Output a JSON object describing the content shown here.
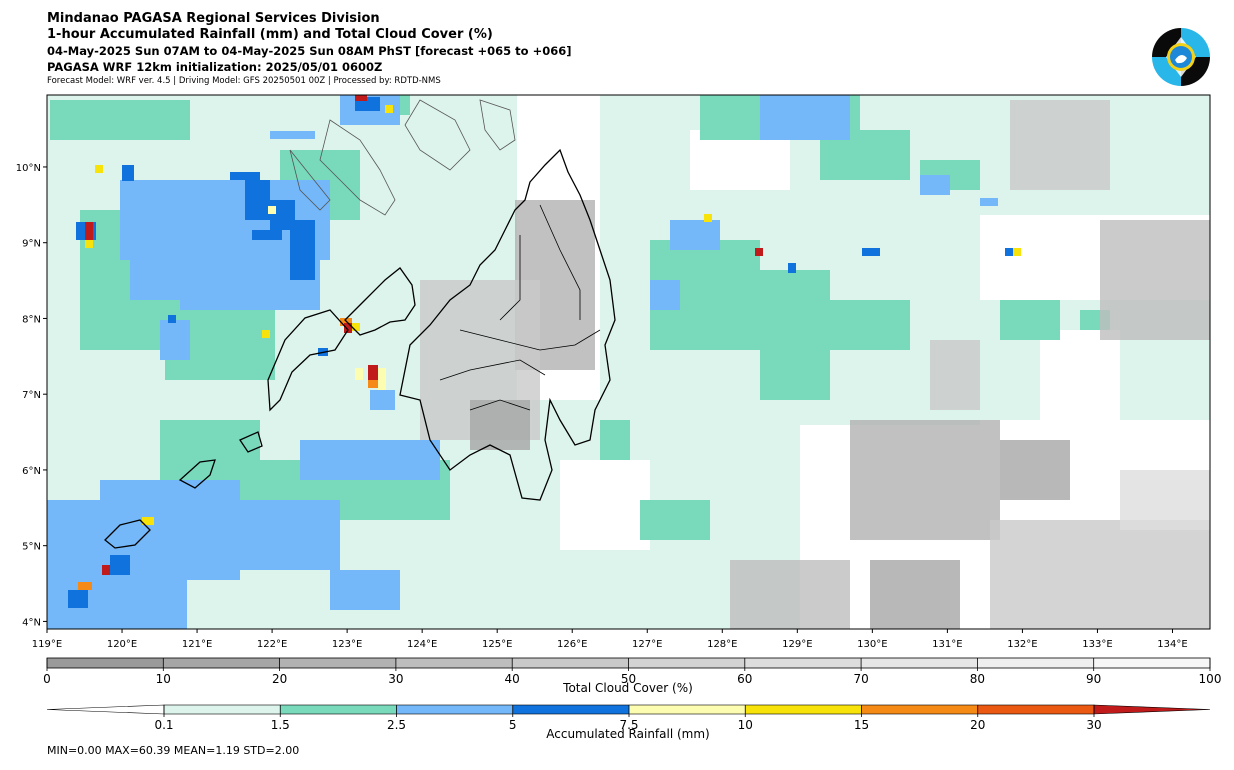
{
  "header": {
    "line1": "Mindanao PAGASA Regional Services Division",
    "line2": "1-hour Accumulated Rainfall (mm) and Total Cloud Cover (%)",
    "line3": "04-May-2025 Sun 07AM to 04-May-2025 Sun 08AM PhST [forecast +065 to +066]",
    "line4": "PAGASA WRF 12km initialization: 2025/05/01 0600Z",
    "line5": "Forecast Model: WRF ver. 4.5 | Driving Model: GFS 20250501 00Z | Processed by: RDTD-NMS"
  },
  "logo": {
    "icon": "pagasa-logo-icon"
  },
  "map": {
    "lon_ticks": [
      "119°E",
      "120°E",
      "121°E",
      "122°E",
      "123°E",
      "124°E",
      "125°E",
      "126°E",
      "127°E",
      "128°E",
      "129°E",
      "130°E",
      "131°E",
      "132°E",
      "133°E",
      "134°E"
    ],
    "lat_ticks": [
      "10°N",
      "9°N",
      "8°N",
      "7°N",
      "6°N",
      "5°N",
      "4°N"
    ],
    "extent": {
      "lon": [
        119.0,
        134.5
      ],
      "lat": [
        3.9,
        10.95
      ]
    }
  },
  "cloud_colorbar": {
    "label": "Total Cloud Cover (%)",
    "ticks": [
      "0",
      "10",
      "20",
      "30",
      "40",
      "50",
      "60",
      "70",
      "80",
      "90",
      "100"
    ],
    "colors": [
      "#9a9a9a",
      "#a6a6a6",
      "#b2b2b2",
      "#bebebe",
      "#c9c9c9",
      "#d3d3d3",
      "#dddddd",
      "#e6e6e6",
      "#efefef",
      "#f7f7f7"
    ]
  },
  "rain_colorbar": {
    "label": "Accumulated Rainfall (mm)",
    "ticks": [
      "0.1",
      "1.5",
      "2.5",
      "5",
      "7.5",
      "10",
      "15",
      "20",
      "30"
    ],
    "colors": [
      "#ddf4ec",
      "#78d9bb",
      "#74b8f9",
      "#0f72dd",
      "#fdfdb2",
      "#f7e30a",
      "#f68a16",
      "#ea5812",
      "#c01a1a"
    ]
  },
  "stats": "MIN=0.00   MAX=60.39   MEAN=1.19   STD=2.00"
}
